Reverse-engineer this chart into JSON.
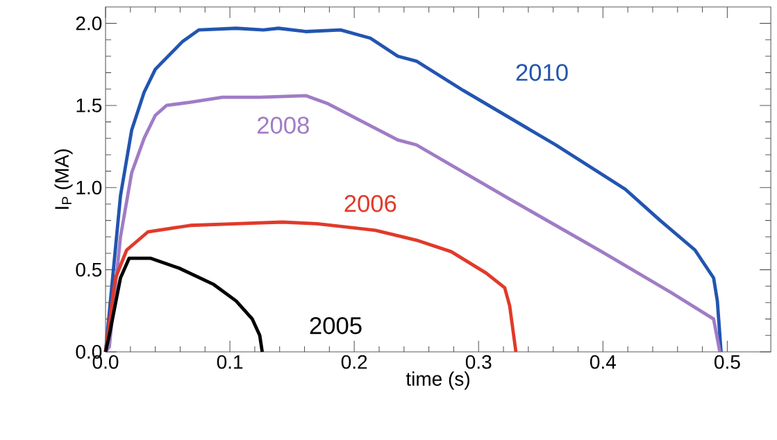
{
  "chart_data": {
    "type": "line",
    "xlabel": "time (s)",
    "ylabel": "I$_{P}$ (MA)",
    "xlim": [
      0,
      0.535
    ],
    "ylim": [
      0,
      2.1
    ],
    "xticks": [
      {
        "value": 0,
        "label": "0.0"
      },
      0.1,
      0.2,
      0.3,
      0.4,
      0.5
    ],
    "yticks": [
      {
        "value": 0,
        "label": "0.0"
      },
      0.5,
      {
        "value": 1,
        "label": "1.0"
      },
      1.5,
      {
        "value": 2,
        "label": "2.0"
      }
    ],
    "grid": false,
    "legend": false,
    "marker": "none",
    "line_style": "solid",
    "series": [
      {
        "name": "2010",
        "color": "#2255b0",
        "x": [
          0,
          0.012,
          0.021,
          0.031,
          0.04,
          0.049,
          0.062,
          0.075,
          0.105,
          0.127,
          0.139,
          0.161,
          0.189,
          0.213,
          0.235,
          0.25,
          0.288,
          0.362,
          0.418,
          0.446,
          0.474,
          0.489,
          0.492,
          0.495
        ],
        "values": [
          0,
          0.95,
          1.35,
          1.58,
          1.72,
          1.79,
          1.89,
          1.96,
          1.97,
          1.96,
          1.97,
          1.95,
          1.96,
          1.91,
          1.8,
          1.77,
          1.59,
          1.26,
          0.99,
          0.8,
          0.62,
          0.45,
          0.31,
          0
        ]
      },
      {
        "name": "2008",
        "color": "#a07cc5",
        "x": [
          0,
          0.003,
          0.012,
          0.021,
          0.031,
          0.04,
          0.049,
          0.068,
          0.094,
          0.124,
          0.161,
          0.179,
          0.207,
          0.235,
          0.25,
          0.325,
          0.399,
          0.455,
          0.489,
          0.494
        ],
        "values": [
          0,
          0.03,
          0.7,
          1.09,
          1.3,
          1.44,
          1.5,
          1.52,
          1.55,
          1.55,
          1.56,
          1.51,
          1.4,
          1.29,
          1.26,
          0.93,
          0.61,
          0.36,
          0.2,
          0
        ]
      },
      {
        "name": "2006",
        "color": "#e03a2a",
        "x": [
          0,
          0.003,
          0.008,
          0.017,
          0.034,
          0.068,
          0.105,
          0.142,
          0.17,
          0.217,
          0.25,
          0.278,
          0.306,
          0.321,
          0.325,
          0.33
        ],
        "values": [
          0,
          0.17,
          0.45,
          0.62,
          0.73,
          0.77,
          0.78,
          0.79,
          0.78,
          0.74,
          0.68,
          0.61,
          0.48,
          0.39,
          0.28,
          0
        ]
      },
      {
        "name": "2005",
        "color": "#000000",
        "x": [
          0,
          0.003,
          0.012,
          0.019,
          0.036,
          0.059,
          0.087,
          0.105,
          0.118,
          0.124,
          0.126
        ],
        "values": [
          0,
          0.1,
          0.45,
          0.57,
          0.57,
          0.51,
          0.41,
          0.31,
          0.2,
          0.1,
          0
        ]
      }
    ]
  }
}
